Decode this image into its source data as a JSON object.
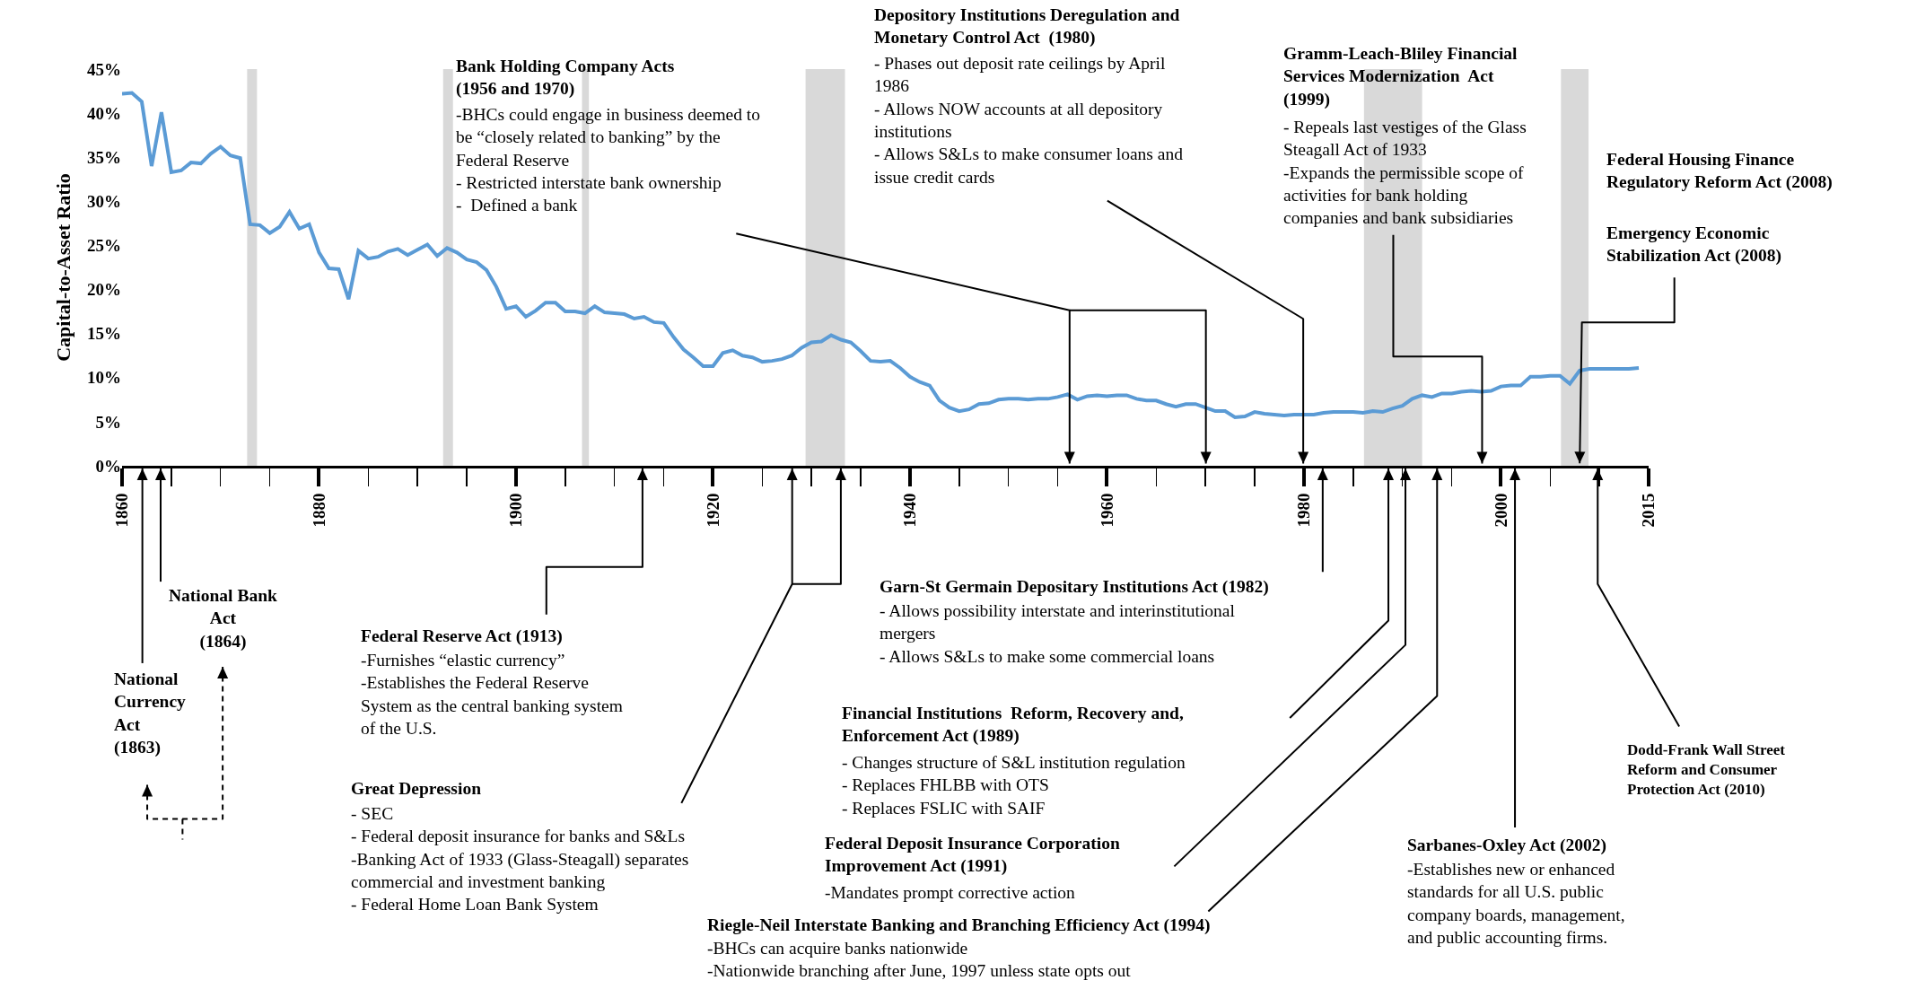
{
  "chart_data": {
    "type": "line",
    "ylabel": "Capital-to-Asset Ratio",
    "x": [
      1860,
      1861,
      1862,
      1863,
      1864,
      1865,
      1866,
      1867,
      1868,
      1869,
      1870,
      1871,
      1872,
      1873,
      1874,
      1875,
      1876,
      1877,
      1878,
      1879,
      1880,
      1881,
      1882,
      1883,
      1884,
      1885,
      1886,
      1887,
      1888,
      1889,
      1890,
      1891,
      1892,
      1893,
      1894,
      1895,
      1896,
      1897,
      1898,
      1899,
      1900,
      1901,
      1902,
      1903,
      1904,
      1905,
      1906,
      1907,
      1908,
      1909,
      1910,
      1911,
      1912,
      1913,
      1914,
      1915,
      1916,
      1917,
      1918,
      1919,
      1920,
      1921,
      1922,
      1923,
      1924,
      1925,
      1926,
      1927,
      1928,
      1929,
      1930,
      1931,
      1932,
      1933,
      1934,
      1935,
      1936,
      1937,
      1938,
      1939,
      1940,
      1941,
      1942,
      1943,
      1944,
      1945,
      1946,
      1947,
      1948,
      1949,
      1950,
      1951,
      1952,
      1953,
      1954,
      1955,
      1956,
      1957,
      1958,
      1959,
      1960,
      1961,
      1962,
      1963,
      1964,
      1965,
      1966,
      1967,
      1968,
      1969,
      1970,
      1971,
      1972,
      1973,
      1974,
      1975,
      1976,
      1977,
      1978,
      1979,
      1980,
      1981,
      1982,
      1983,
      1984,
      1985,
      1986,
      1987,
      1988,
      1989,
      1990,
      1991,
      1992,
      1993,
      1994,
      1995,
      1996,
      1997,
      1998,
      1999,
      2000,
      2001,
      2002,
      2003,
      2004,
      2005,
      2006,
      2007,
      2008,
      2009,
      2010,
      2011,
      2012,
      2013,
      2014
    ],
    "series": [
      {
        "color": "#5b9bd5",
        "values": [
          42.2,
          42.3,
          41.3,
          34,
          40.1,
          33.3,
          33.5,
          34.4,
          34.3,
          35.4,
          36.2,
          35.2,
          34.9,
          27.4,
          27.3,
          26.4,
          27.1,
          28.8,
          26.9,
          27.4,
          24.2,
          22.4,
          22.3,
          18.9,
          24.4,
          23.5,
          23.7,
          24.3,
          24.6,
          23.9,
          24.5,
          25.1,
          23.8,
          24.7,
          24.2,
          23.4,
          23.1,
          22.2,
          20.3,
          17.8,
          18.1,
          16.9,
          17.6,
          18.5,
          18.5,
          17.5,
          17.5,
          17.3,
          18.1,
          17.4,
          17.3,
          17.2,
          16.7,
          16.9,
          16.3,
          16.2,
          14.6,
          13.2,
          12.3,
          11.3,
          11.3,
          12.8,
          13.1,
          12.5,
          12.3,
          11.8,
          11.9,
          12.1,
          12.5,
          13.4,
          14.0,
          14.1,
          14.8,
          14.3,
          14.0,
          13.0,
          11.9,
          11.8,
          11.9,
          11.1,
          10.1,
          9.5,
          9.1,
          7.4,
          6.6,
          6.2,
          6.4,
          7.0,
          7.1,
          7.5,
          7.6,
          7.6,
          7.5,
          7.6,
          7.6,
          7.8,
          8.1,
          7.5,
          7.9,
          8.0,
          7.9,
          8.0,
          8.0,
          7.6,
          7.4,
          7.4,
          7.0,
          6.7,
          7.0,
          7.0,
          6.6,
          6.2,
          6.2,
          5.5,
          5.6,
          6.1,
          5.9,
          5.8,
          5.7,
          5.8,
          5.8,
          5.8,
          6.0,
          6.1,
          6.1,
          6.1,
          6.0,
          6.2,
          6.1,
          6.5,
          6.8,
          7.6,
          8.0,
          7.8,
          8.2,
          8.2,
          8.4,
          8.5,
          8.4,
          8.5,
          9.0,
          9.1,
          9.1,
          10.1,
          10.1,
          10.2,
          10.2,
          9.3,
          10.8,
          11.0,
          11.0,
          11.0,
          11.0,
          11.0,
          11.1
        ]
      }
    ],
    "xlim": [
      1860,
      2015
    ],
    "xticks": [
      1860,
      1880,
      1900,
      1920,
      1940,
      1960,
      1980,
      2000,
      2015
    ],
    "ylim": [
      0,
      45
    ],
    "yticks": [
      {
        "value": 0,
        "label": "0%"
      },
      {
        "value": 5,
        "label": "5%"
      },
      {
        "value": 10,
        "label": "10%"
      },
      {
        "value": 15,
        "label": "15%"
      },
      {
        "value": 20,
        "label": "20%"
      },
      {
        "value": 25,
        "label": "25%"
      },
      {
        "value": 30,
        "label": "30%"
      },
      {
        "value": 35,
        "label": "35%"
      },
      {
        "value": 40,
        "label": "40%"
      },
      {
        "value": 45,
        "label": "45%"
      }
    ],
    "bands": [
      {
        "axis": "x",
        "from": 1872.7,
        "to": 1873.7,
        "color": "#d9d9d9"
      },
      {
        "axis": "x",
        "from": 1892.6,
        "to": 1893.6,
        "color": "#d9d9d9"
      },
      {
        "axis": "x",
        "from": 1906.7,
        "to": 1907.4,
        "color": "#d9d9d9"
      },
      {
        "axis": "x",
        "from": 1929.4,
        "to": 1933.4,
        "color": "#d9d9d9"
      },
      {
        "axis": "x",
        "from": 1986.1,
        "to": 1992,
        "color": "#d9d9d9"
      },
      {
        "axis": "x",
        "from": 2006.1,
        "to": 2008.9,
        "color": "#d9d9d9"
      }
    ],
    "annotations": [
      "National\nCurrency\nAct\n(1863)",
      "National Bank\nAct\n(1864)",
      "Federal Reserve Act (1913)",
      "-Furnishes “elastic currency”\n-Establishes the Federal Reserve\nSystem as the central banking system\nof the U.S.",
      "Great Depression",
      "- SEC\n- Federal deposit insurance for banks and S&Ls\n-Banking Act of 1933 (Glass-Steagall) separates\ncommercial and investment banking\n- Federal Home Loan Bank System",
      "Bank Holding Company Acts\n(1956 and 1970)",
      "-BHCs could engage in business deemed to\nbe “closely related to banking” by the\nFederal Reserve\n- Restricted interstate bank ownership\n-  Defined a bank",
      "Depository Institutions Deregulation and\nMonetary Control Act  (1980)",
      "- Phases out deposit rate ceilings by April\n1986\n- Allows NOW accounts at all depository\ninstitutions\n- Allows S&Ls to make consumer loans and\nissue credit cards",
      "Gramm-Leach-Bliley Financial\nServices Modernization  Act\n(1999)",
      "- Repeals last vestiges of the Glass\nSteagall Act of 1933\n-Expands the permissible scope of\nactivities for bank holding\ncompanies and bank subsidiaries",
      "Federal Housing Finance\nRegulatory Reform Act (2008)",
      {
        "text": "Emergency Economic\nStabilization Act (2008)",
        "x": 2008,
        "y": 0
      },
      "Garn-St Germain Depositary Institutions Act (1982)",
      "- Allows possibility interstate and interinstitutional\nmergers\n- Allows S&Ls to make some commercial loans",
      "Financial Institutions  Reform, Recovery and,\nEnforcement Act (1989)",
      "- Changes structure of S&L institution regulation\n- Replaces FHLBB with OTS\n- Replaces FSLIC with SAIF",
      "Federal Deposit Insurance Corporation\nImprovement Act (1991)",
      "-Mandates prompt corrective action",
      "Riegle-Neil Interstate Banking and Branching Efficiency Act (1994)",
      "-BHCs can acquire banks nationwide\n-Nationwide branching after June, 1997 unless state opts out",
      "Sarbanes-Oxley Act (2002)",
      "-Establishes new or enhanced\nstandards for all U.S. public\ncompany boards, management,\nand public accounting firms.",
      "Dodd-Frank Wall Street\nReform and Consumer\nProtection Act (2010)"
    ]
  }
}
